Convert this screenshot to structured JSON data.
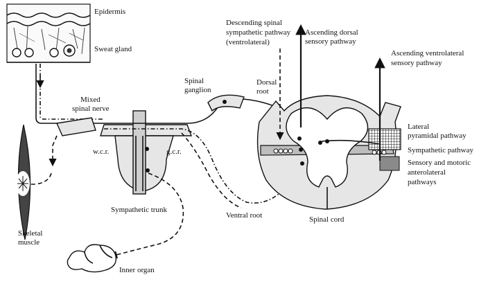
{
  "labels": {
    "epidermis": "Epidermis",
    "sweat_gland": "Sweat gland",
    "descending_1": "Descending spinal",
    "descending_2": "sympathetic pathway",
    "descending_3": "(ventrolateral)",
    "asc_dorsal_1": "Ascending dorsal",
    "asc_dorsal_2": "sensory pathway",
    "asc_ventro_1": "Ascending ventrolateral",
    "asc_ventro_2": "sensory pathway",
    "mixed_1": "Mixed",
    "mixed_2": "spinal nerve",
    "spinal_ganglion_1": "Spinal",
    "spinal_ganglion_2": "ganglion",
    "dorsal_root_1": "Dorsal",
    "dorsal_root_2": "root",
    "wcr": "w.c.r.",
    "gcr": "g.c.r.",
    "lateral_pyr_1": "Lateral",
    "lateral_pyr_2": "pyramidal pathway",
    "sympathetic_pathway": "Sympathetic pathway",
    "sensory_1": "Sensory and motoric",
    "sensory_2": "anterolateral",
    "sensory_3": "pathways",
    "skeletal_1": "Skeletal",
    "skeletal_2": "muscle",
    "sympathetic_trunk": "Sympathetic trunk",
    "ventral_root": "Ventral root",
    "spinal_cord": "Spinal cord",
    "inner_organ": "Inner organ"
  }
}
